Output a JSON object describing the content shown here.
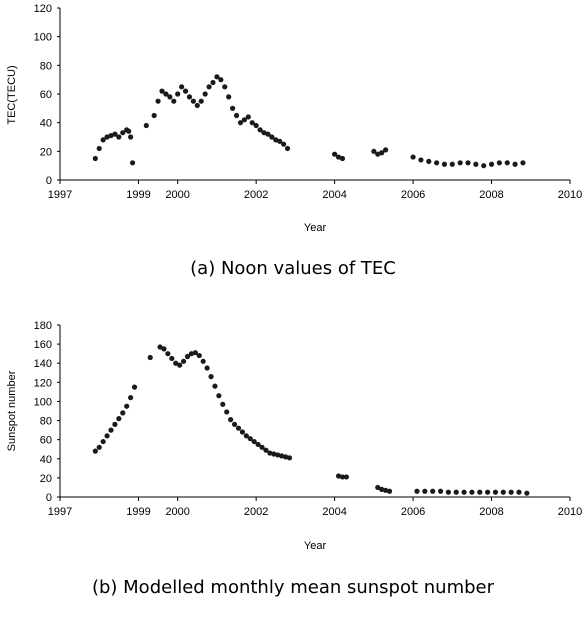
{
  "panel_a": {
    "caption": "(a) Noon values of TEC"
  },
  "panel_b": {
    "caption": "(b) Modelled monthly mean sunspot number"
  },
  "chart_data": [
    {
      "type": "scatter",
      "xlabel": "Year",
      "ylabel": "TEC(TECU)",
      "xlim": [
        1997,
        2010
      ],
      "ylim": [
        0,
        120
      ],
      "xticks": [
        "1997",
        "1999",
        "2000",
        "2002",
        "2004",
        "2006",
        "2008",
        "2010"
      ],
      "xtick_positions": [
        1997,
        1999,
        2000,
        2002,
        2004,
        2006,
        2008,
        2010
      ],
      "yticks": [
        "0",
        "20",
        "40",
        "60",
        "80",
        "100",
        "120"
      ],
      "marker_color": "#1a1a1a",
      "series": [
        {
          "x": [
            1997.9,
            1998.0,
            1998.1,
            1998.2,
            1998.3,
            1998.4,
            1998.5,
            1998.6,
            1998.7,
            1998.75,
            1998.8,
            1998.85,
            1999.2,
            1999.4,
            1999.5,
            1999.6,
            1999.7,
            1999.8,
            1999.9,
            2000.0,
            2000.1,
            2000.2,
            2000.3,
            2000.4,
            2000.5,
            2000.6,
            2000.7,
            2000.8,
            2000.9,
            2001.0,
            2001.1,
            2001.2,
            2001.3,
            2001.4,
            2001.5,
            2001.6,
            2001.7,
            2001.8,
            2001.9,
            2002.0,
            2002.1,
            2002.2,
            2002.3,
            2002.4,
            2002.5,
            2002.6,
            2002.7,
            2002.8,
            2004.0,
            2004.1,
            2004.2,
            2005.0,
            2005.1,
            2005.2,
            2005.3,
            2006.0,
            2006.2,
            2006.4,
            2006.6,
            2006.8,
            2007.0,
            2007.2,
            2007.4,
            2007.6,
            2007.8,
            2008.0,
            2008.2,
            2008.4,
            2008.6,
            2008.8
          ],
          "y": [
            15,
            22,
            28,
            30,
            31,
            32,
            30,
            33,
            35,
            34,
            30,
            12,
            38,
            45,
            55,
            62,
            60,
            58,
            55,
            60,
            65,
            62,
            58,
            55,
            52,
            55,
            60,
            65,
            68,
            72,
            70,
            65,
            58,
            50,
            45,
            40,
            42,
            44,
            40,
            38,
            35,
            33,
            32,
            30,
            28,
            27,
            25,
            22,
            18,
            16,
            15,
            20,
            18,
            19,
            21,
            16,
            14,
            13,
            12,
            11,
            11,
            12,
            12,
            11,
            10,
            11,
            12,
            12,
            11,
            12
          ]
        }
      ]
    },
    {
      "type": "scatter",
      "xlabel": "Year",
      "ylabel": "Sunspot number",
      "xlim": [
        1997,
        2010
      ],
      "ylim": [
        0,
        180
      ],
      "xticks": [
        "1997",
        "1999",
        "2000",
        "2002",
        "2004",
        "2006",
        "2008",
        "2010"
      ],
      "xtick_positions": [
        1997,
        1999,
        2000,
        2002,
        2004,
        2006,
        2008,
        2010
      ],
      "yticks": [
        "0",
        "20",
        "40",
        "60",
        "80",
        "100",
        "120",
        "140",
        "160",
        "180"
      ],
      "marker_color": "#1a1a1a",
      "series": [
        {
          "x": [
            1997.9,
            1998.0,
            1998.1,
            1998.2,
            1998.3,
            1998.4,
            1998.5,
            1998.6,
            1998.7,
            1998.8,
            1998.9,
            1999.3,
            1999.55,
            1999.65,
            1999.75,
            1999.85,
            1999.95,
            2000.05,
            2000.15,
            2000.25,
            2000.35,
            2000.45,
            2000.55,
            2000.65,
            2000.75,
            2000.85,
            2000.95,
            2001.05,
            2001.15,
            2001.25,
            2001.35,
            2001.45,
            2001.55,
            2001.65,
            2001.75,
            2001.85,
            2001.95,
            2002.05,
            2002.15,
            2002.25,
            2002.35,
            2002.45,
            2002.55,
            2002.65,
            2002.75,
            2002.85,
            2004.1,
            2004.2,
            2004.3,
            2005.1,
            2005.2,
            2005.3,
            2005.4,
            2006.1,
            2006.3,
            2006.5,
            2006.7,
            2006.9,
            2007.1,
            2007.3,
            2007.5,
            2007.7,
            2007.9,
            2008.1,
            2008.3,
            2008.5,
            2008.7,
            2008.9
          ],
          "y": [
            48,
            52,
            58,
            64,
            70,
            76,
            82,
            88,
            95,
            104,
            115,
            146,
            157,
            155,
            150,
            145,
            140,
            138,
            142,
            147,
            150,
            151,
            148,
            142,
            135,
            126,
            116,
            106,
            97,
            89,
            81,
            76,
            72,
            68,
            64,
            61,
            58,
            55,
            52,
            49,
            46,
            45,
            44,
            43,
            42,
            41,
            22,
            21,
            21,
            10,
            8,
            7,
            6,
            6,
            6,
            6,
            6,
            5,
            5,
            5,
            5,
            5,
            5,
            5,
            5,
            5,
            5,
            4
          ]
        }
      ]
    }
  ]
}
